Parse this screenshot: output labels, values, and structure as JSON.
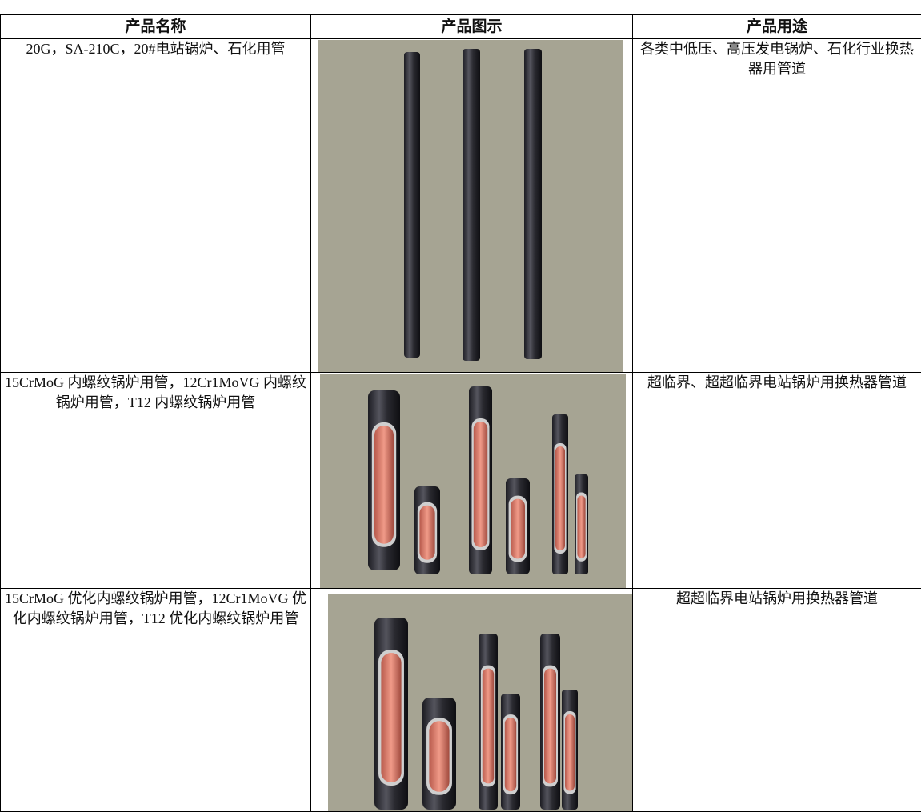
{
  "table": {
    "header": [
      "产品名称",
      "产品图示",
      "产品用途"
    ],
    "rows": [
      [
        "20G，SA-210C，20#电站锅炉、石化用管",
        "各类中低压、高压发电锅炉、石化行业换热器用管道"
      ],
      [
        "15CrMoG 内螺纹锅炉用管，12Cr1MoVG 内螺纹锅炉用管，T12 内螺纹锅炉用管",
        "超临界、超超临界电站锅炉用换热器管道"
      ],
      [
        "15CrMoG 优化内螺纹锅炉用管，12Cr1MoVG 优化内螺纹锅炉用管，T12 优化内螺纹锅炉用管",
        "超超临界电站锅炉用换热器管道"
      ]
    ]
  }
}
